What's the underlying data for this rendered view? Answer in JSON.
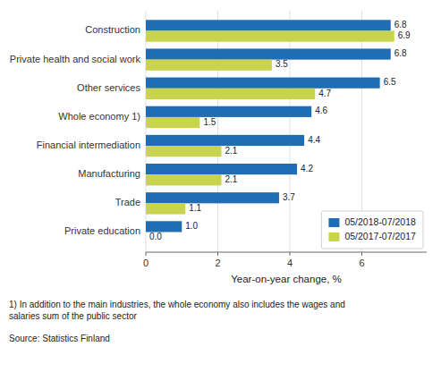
{
  "chart_data": {
    "type": "bar",
    "orientation": "horizontal",
    "categories": [
      "Private education",
      "Trade",
      "Manufacturing",
      "Financial intermediation",
      "Whole economy 1)",
      "Other services",
      "Private health and social work",
      "Construction"
    ],
    "series": [
      {
        "name": "05/2018-07/2018",
        "color": "#1f6db5",
        "values": [
          1.0,
          3.7,
          4.2,
          4.4,
          4.6,
          6.5,
          6.8,
          6.8
        ],
        "value_labels": [
          "1.0",
          "3.7",
          "4.2",
          "4.4",
          "4.6",
          "6.5",
          "6.8",
          "6.8"
        ]
      },
      {
        "name": "05/2017-07/2017",
        "color": "#c8d44e",
        "values": [
          0.0,
          1.1,
          2.1,
          2.1,
          1.5,
          4.7,
          3.5,
          6.9
        ],
        "value_labels": [
          "0.0",
          "1.1",
          "2.1",
          "2.1",
          "1.5",
          "4.7",
          "3.5",
          "6.9"
        ]
      }
    ],
    "xlabel": "Year-on-year change, %",
    "xlim": [
      0,
      7.8
    ],
    "xticks": [
      0,
      2,
      4,
      6
    ],
    "grid": true,
    "legend": "lower right",
    "data_labels": true,
    "annotations": [
      "1) In addition to the main industries, the whole economy also includes the wages and\nsalaries sum of the public sector",
      "Source: Statistics Finland"
    ]
  }
}
